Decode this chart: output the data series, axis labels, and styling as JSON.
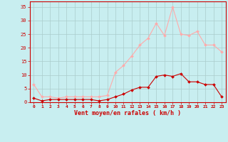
{
  "x": [
    0,
    1,
    2,
    3,
    4,
    5,
    6,
    7,
    8,
    9,
    10,
    11,
    12,
    13,
    14,
    15,
    16,
    17,
    18,
    19,
    20,
    21,
    22,
    23
  ],
  "wind_mean": [
    1.5,
    0.5,
    1,
    1,
    1,
    1,
    1,
    1,
    0.5,
    1,
    2,
    3,
    4.5,
    5.5,
    5.5,
    9.5,
    10,
    9.5,
    10.5,
    7.5,
    7.5,
    6.5,
    6.5,
    2
  ],
  "wind_gust": [
    6.5,
    2,
    2,
    1.5,
    2,
    2,
    2,
    2,
    2,
    2.5,
    11,
    13.5,
    17,
    21,
    23.5,
    29,
    24.5,
    35,
    25,
    24.5,
    26,
    21,
    21,
    18.5
  ],
  "mean_color": "#cc0000",
  "gust_color": "#ffaaaa",
  "bg_color": "#c8eef0",
  "grid_color": "#aacccc",
  "axis_color": "#cc0000",
  "xlabel": "Vent moyen/en rafales ( km/h )",
  "xlim_min": -0.5,
  "xlim_max": 23.5,
  "ylim_min": 0,
  "ylim_max": 37,
  "yticks": [
    0,
    5,
    10,
    15,
    20,
    25,
    30,
    35
  ],
  "xticks": [
    0,
    1,
    2,
    3,
    4,
    5,
    6,
    7,
    8,
    9,
    10,
    11,
    12,
    13,
    14,
    15,
    16,
    17,
    18,
    19,
    20,
    21,
    22,
    23
  ]
}
